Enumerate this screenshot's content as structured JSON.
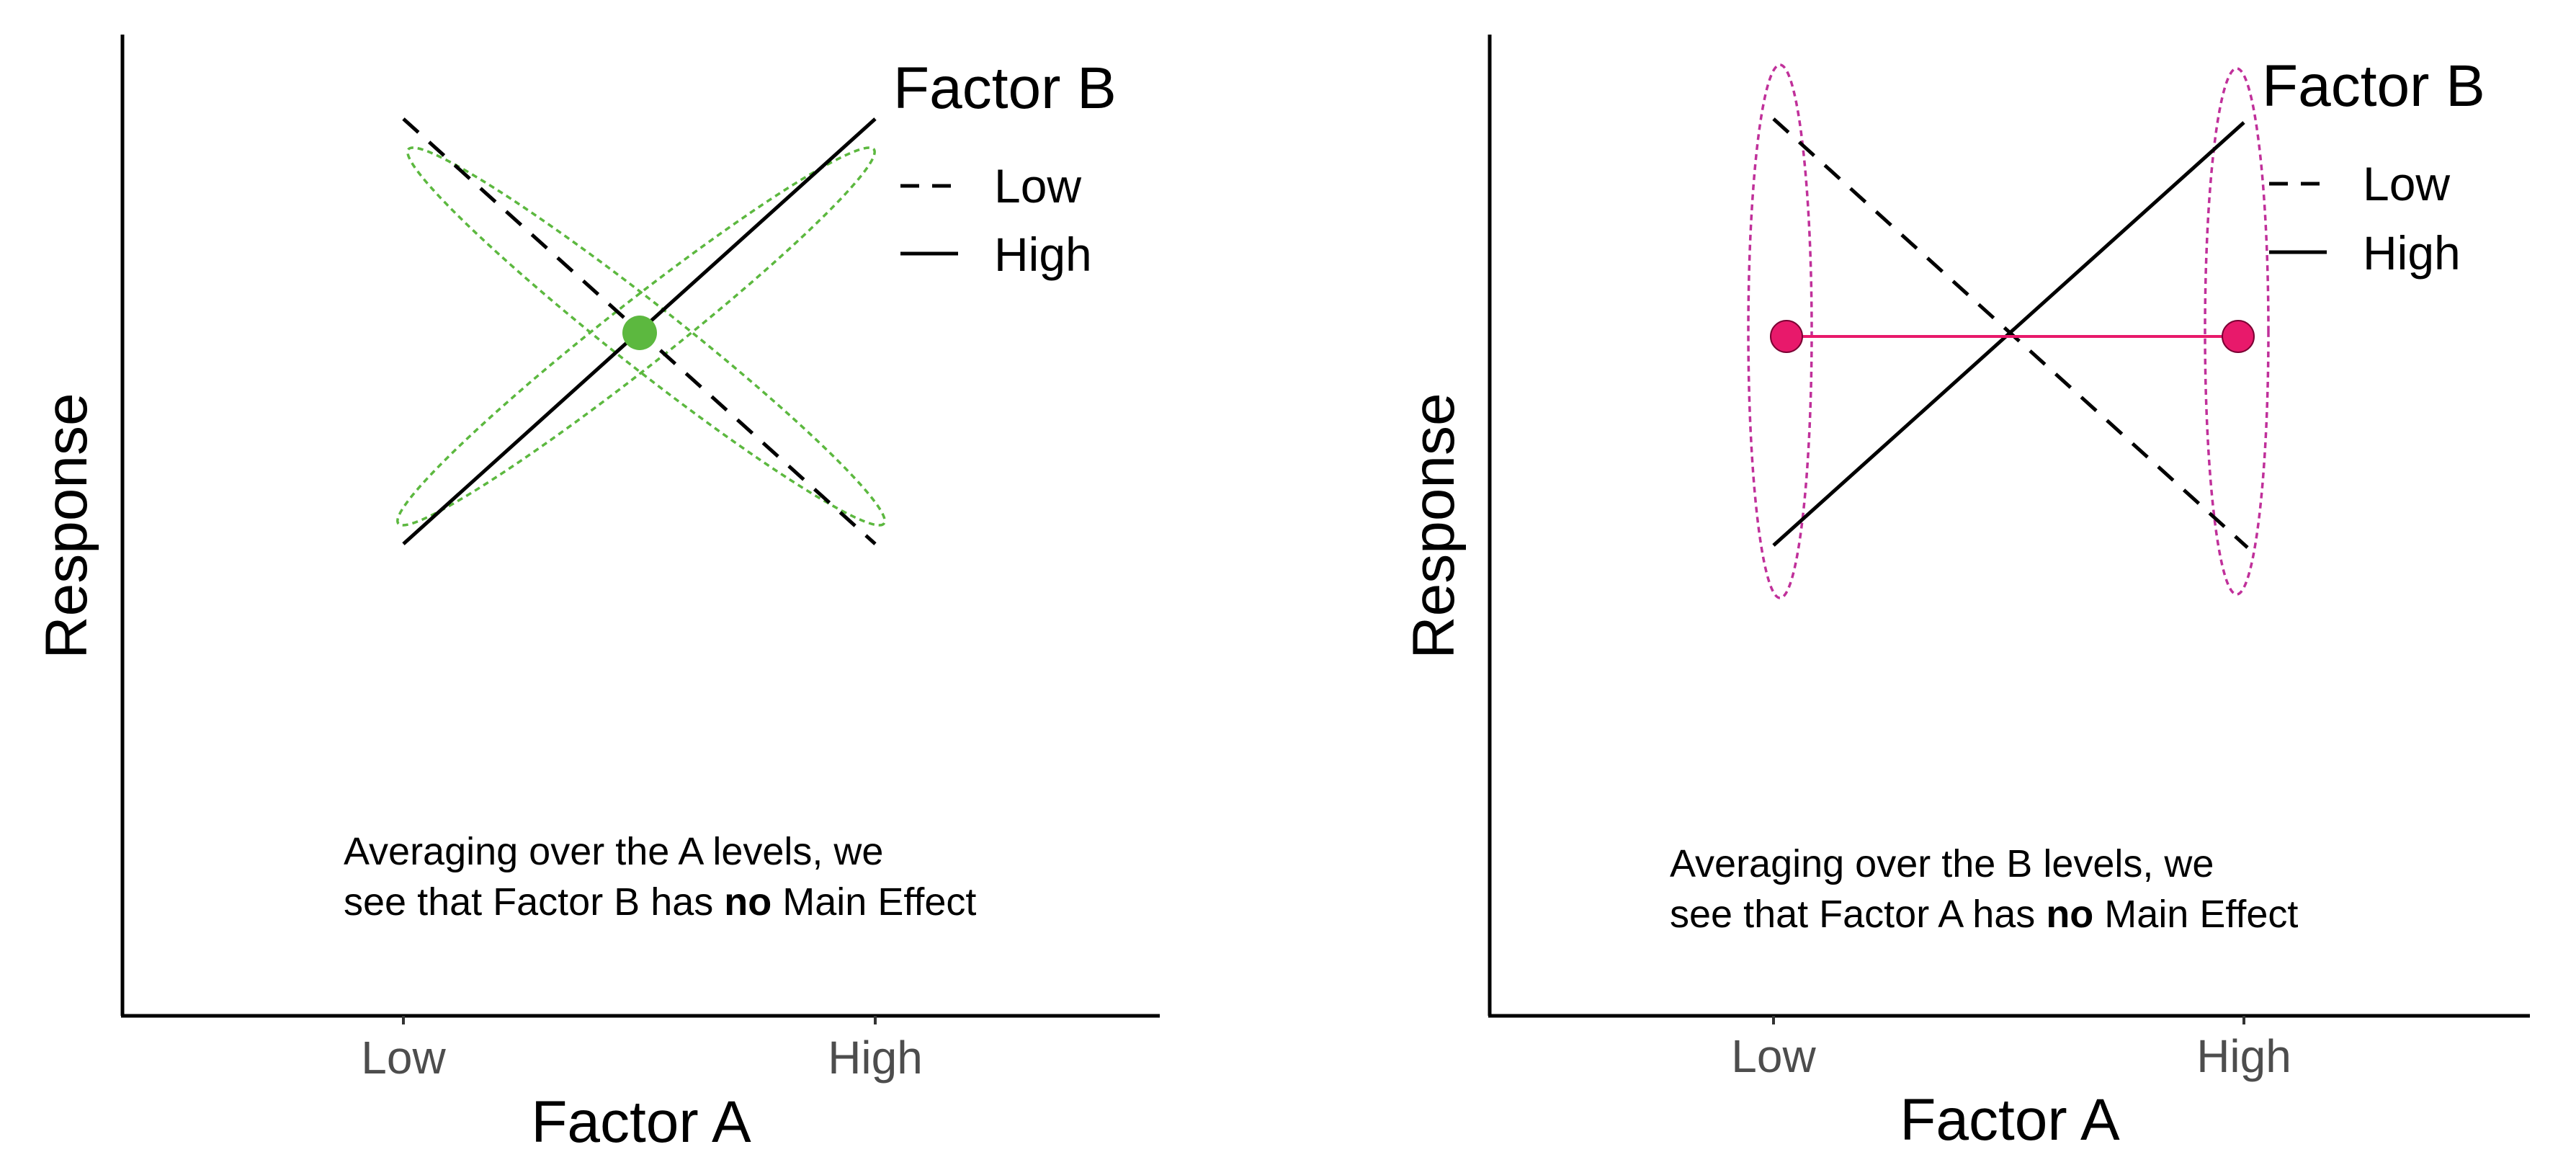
{
  "colors": {
    "line": "#000000",
    "axis": "#000000",
    "tick_label": "#4d4d4d",
    "left_highlight": "#5cb83f",
    "right_highlight": "#e8196b",
    "right_ellipse": "#c0309a"
  },
  "chart_data": [
    {
      "type": "line",
      "xlabel": "Factor A",
      "ylabel": "Response",
      "categories": [
        "Low",
        "High"
      ],
      "ylim": [
        0,
        10
      ],
      "legend": {
        "title": "Factor B",
        "position": "top-right",
        "entries": [
          {
            "label": "Low",
            "linetype": "dashed"
          },
          {
            "label": "High",
            "linetype": "solid"
          }
        ]
      },
      "series": [
        {
          "name": "Low",
          "values": [
            9,
            4.5
          ]
        },
        {
          "name": "High",
          "values": [
            4.5,
            9
          ]
        }
      ],
      "highlight": {
        "shape": "ellipses-around-lines",
        "point": {
          "x": 0.5,
          "y": 6.75
        },
        "color": "#5cb83f"
      },
      "annotation": {
        "line1": "Averaging over the A levels, we",
        "line2_pre": "see that Factor B has ",
        "line2_bold": "no",
        "line2_post": " Main Effect"
      }
    },
    {
      "type": "line",
      "xlabel": "Factor A",
      "ylabel": "Response",
      "categories": [
        "Low",
        "High"
      ],
      "ylim": [
        0,
        10
      ],
      "legend": {
        "title": "Factor B",
        "position": "top-right",
        "entries": [
          {
            "label": "Low",
            "linetype": "dashed"
          },
          {
            "label": "High",
            "linetype": "solid"
          }
        ]
      },
      "series": [
        {
          "name": "Low",
          "values": [
            9,
            4.5
          ]
        },
        {
          "name": "High",
          "values": [
            4.5,
            9
          ]
        }
      ],
      "highlight": {
        "shape": "ellipses-at-levels",
        "points": [
          {
            "x": 0,
            "y": 6.75
          },
          {
            "x": 1,
            "y": 6.75
          }
        ],
        "color": "#e8196b"
      },
      "annotation": {
        "line1": "Averaging over the B levels, we",
        "line2_pre": "see that Factor A has ",
        "line2_bold": "no",
        "line2_post": " Main Effect"
      }
    }
  ]
}
